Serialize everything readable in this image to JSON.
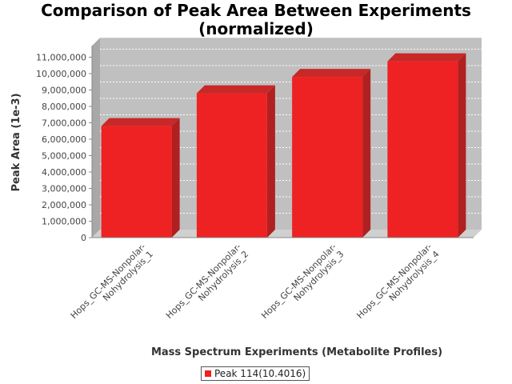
{
  "chart_data": {
    "type": "bar",
    "title_lines": [
      "Comparison of Peak Area Between Experiments",
      "(normalized)"
    ],
    "xlabel": "Mass Spectrum Experiments (Metabolite Profiles)",
    "ylabel": "Peak Area (1e-3)",
    "categories": [
      [
        "Hops_GC-MS-Nonpolar-",
        "Nohydrolysis_1"
      ],
      [
        "Hops_GC-MS-Nonpolar-",
        "Nohydrolysis_2"
      ],
      [
        "Hops_GC-MS-Nonpolar-",
        "Nohydrolysis_3"
      ],
      [
        "Hops_GC-MS-Nonpolar-",
        "Nohydrolysis_4"
      ]
    ],
    "series": [
      {
        "name": "Peak 114(10.4016)",
        "values": [
          6800000,
          8800000,
          9800000,
          10750000
        ]
      }
    ],
    "yticks": [
      "0",
      "1,000,000",
      "2,000,000",
      "3,000,000",
      "4,000,000",
      "5,000,000",
      "6,000,000",
      "7,000,000",
      "8,000,000",
      "9,000,000",
      "10,000,000",
      "11,000,000"
    ],
    "ylim": [
      0,
      11500000
    ],
    "grid": true,
    "legend_position": "bottom-center",
    "colors": {
      "bar": "#ee2222",
      "bar_side": "#b02020",
      "bar_top": "#c82828",
      "plot_bg": "#c0c0c0"
    }
  }
}
